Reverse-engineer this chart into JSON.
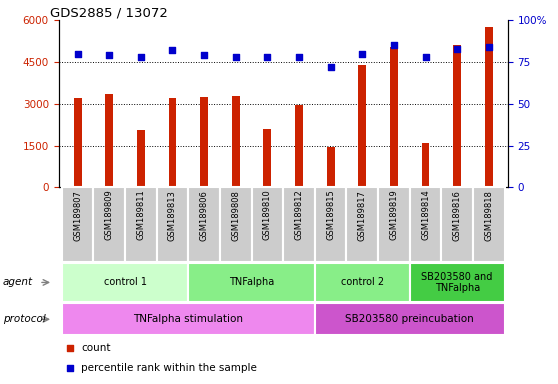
{
  "title": "GDS2885 / 13072",
  "samples": [
    "GSM189807",
    "GSM189809",
    "GSM189811",
    "GSM189813",
    "GSM189806",
    "GSM189808",
    "GSM189810",
    "GSM189812",
    "GSM189815",
    "GSM189817",
    "GSM189819",
    "GSM189814",
    "GSM189816",
    "GSM189818"
  ],
  "counts": [
    3200,
    3350,
    2050,
    3200,
    3250,
    3300,
    2100,
    2950,
    1450,
    4400,
    5050,
    1600,
    5100,
    5750
  ],
  "percentiles": [
    80,
    79,
    78,
    82,
    79,
    78,
    78,
    78,
    72,
    80,
    85,
    78,
    83,
    84
  ],
  "bar_color": "#cc2200",
  "dot_color": "#0000cc",
  "ylim_left": [
    0,
    6000
  ],
  "ylim_right": [
    0,
    100
  ],
  "yticks_left": [
    0,
    1500,
    3000,
    4500,
    6000
  ],
  "ytick_labels_left": [
    "0",
    "1500",
    "3000",
    "4500",
    "6000"
  ],
  "yticks_right": [
    0,
    25,
    50,
    75,
    100
  ],
  "ytick_labels_right": [
    "0",
    "25",
    "50",
    "75",
    "100%"
  ],
  "agent_groups": [
    {
      "label": "control 1",
      "start": 0,
      "end": 4,
      "color": "#ccffcc"
    },
    {
      "label": "TNFalpha",
      "start": 4,
      "end": 8,
      "color": "#88ee88"
    },
    {
      "label": "control 2",
      "start": 8,
      "end": 11,
      "color": "#88ee88"
    },
    {
      "label": "SB203580 and\nTNFalpha",
      "start": 11,
      "end": 14,
      "color": "#44cc44"
    }
  ],
  "protocol_groups": [
    {
      "label": "TNFalpha stimulation",
      "start": 0,
      "end": 8,
      "color": "#ee88ee"
    },
    {
      "label": "SB203580 preincubation",
      "start": 8,
      "end": 14,
      "color": "#cc55cc"
    }
  ],
  "legend_items": [
    {
      "color": "#cc2200",
      "label": "count"
    },
    {
      "color": "#0000cc",
      "label": "percentile rank within the sample"
    }
  ],
  "left_axis_color": "#cc2200",
  "right_axis_color": "#0000cc",
  "tick_area_color": "#cccccc",
  "agent_label": "agent",
  "protocol_label": "protocol",
  "bar_width": 0.25
}
